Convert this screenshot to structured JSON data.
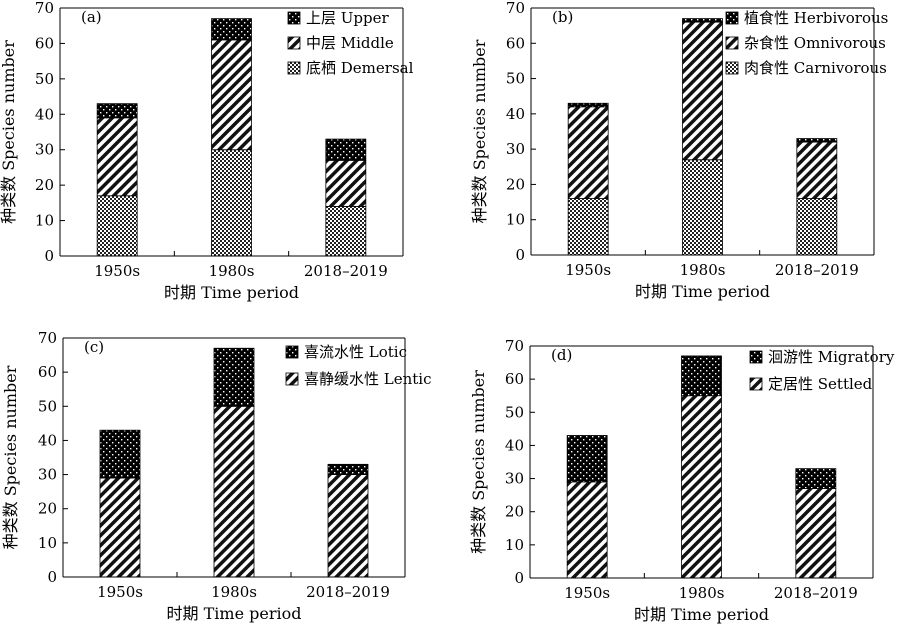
{
  "chart_data": [
    {
      "type": "bar",
      "stacked": true,
      "panel_label": "(a)",
      "categories": [
        "1950s",
        "1980s",
        "2018–2019"
      ],
      "xlabel": "时期 Time period",
      "ylabel": "种类数 Species number",
      "ylim": [
        0,
        70
      ],
      "yticks": [
        0,
        10,
        20,
        30,
        40,
        50,
        60,
        70
      ],
      "legend_position": "top-right",
      "series": [
        {
          "name": "底栖 Demersal",
          "pattern": "checker",
          "values": [
            17,
            30,
            14
          ]
        },
        {
          "name": "中层 Middle",
          "pattern": "diagonal-stripes",
          "values": [
            22,
            31,
            13
          ]
        },
        {
          "name": "上层 Upper",
          "pattern": "black-dots",
          "values": [
            4,
            6,
            6
          ]
        }
      ]
    },
    {
      "type": "bar",
      "stacked": true,
      "panel_label": "(b)",
      "categories": [
        "1950s",
        "1980s",
        "2018–2019"
      ],
      "xlabel": "时期 Time period",
      "ylabel": "种类数 Species number",
      "ylim": [
        0,
        70
      ],
      "yticks": [
        0,
        10,
        20,
        30,
        40,
        50,
        60,
        70
      ],
      "legend_position": "top-right",
      "series": [
        {
          "name": "肉食性 Carnivorous",
          "pattern": "checker",
          "values": [
            16,
            27,
            16
          ]
        },
        {
          "name": "杂食性 Omnivorous",
          "pattern": "diagonal-stripes",
          "values": [
            26,
            39,
            16
          ]
        },
        {
          "name": "植食性 Herbivorous",
          "pattern": "black-dots",
          "values": [
            1,
            1,
            1
          ]
        }
      ]
    },
    {
      "type": "bar",
      "stacked": true,
      "panel_label": "(c)",
      "categories": [
        "1950s",
        "1980s",
        "2018–2019"
      ],
      "xlabel": "时期 Time period",
      "ylabel": "种类数 Species number",
      "ylim": [
        0,
        70
      ],
      "yticks": [
        0,
        10,
        20,
        30,
        40,
        50,
        60,
        70
      ],
      "legend_position": "top-right",
      "series": [
        {
          "name": "喜静缓水性 Lentic",
          "pattern": "diagonal-stripes",
          "values": [
            29,
            50,
            30
          ]
        },
        {
          "name": "喜流水性 Lotic",
          "pattern": "black-dots",
          "values": [
            14,
            17,
            3
          ]
        }
      ]
    },
    {
      "type": "bar",
      "stacked": true,
      "panel_label": "(d)",
      "categories": [
        "1950s",
        "1980s",
        "2018–2019"
      ],
      "xlabel": "时期 Time period",
      "ylabel": "种类数 Species number",
      "ylim": [
        0,
        70
      ],
      "yticks": [
        0,
        10,
        20,
        30,
        40,
        50,
        60,
        70
      ],
      "legend_position": "top-right",
      "series": [
        {
          "name": "定居性 Settled",
          "pattern": "diagonal-stripes",
          "values": [
            29,
            55,
            27
          ]
        },
        {
          "name": "洄游性 Migratory",
          "pattern": "black-dots",
          "values": [
            14,
            12,
            6
          ]
        }
      ]
    }
  ]
}
